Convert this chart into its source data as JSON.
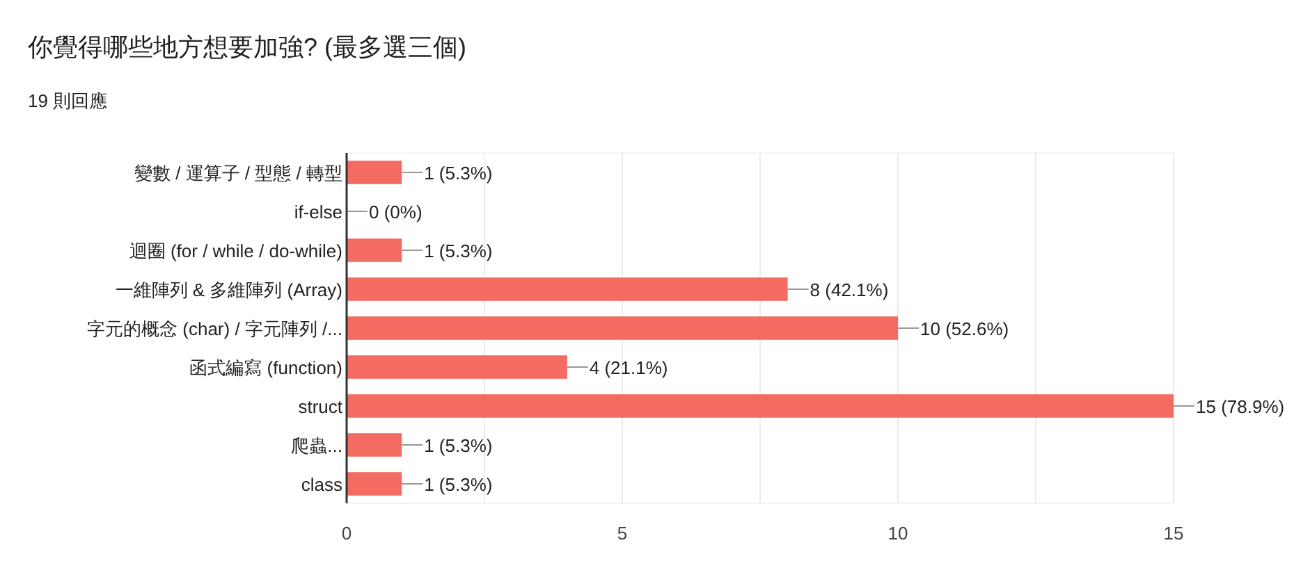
{
  "chart_data": {
    "type": "bar",
    "orientation": "horizontal",
    "title": "你覺得哪些地方想要加強? (最多選三個)",
    "subtitle": "19 則回應",
    "categories": [
      "變數 / 運算子 / 型態 / 轉型",
      "if-else",
      "迴圈 (for / while / do-while)",
      "一維陣列 & 多維陣列 (Array)",
      "字元的概念 (char) / 字元陣列 /...",
      "函式編寫 (function)",
      "struct",
      "爬蟲...",
      "class"
    ],
    "values": [
      1,
      0,
      1,
      8,
      10,
      4,
      15,
      1,
      1
    ],
    "value_labels": [
      "1 (5.3%)",
      "0 (0%)",
      "1 (5.3%)",
      "8 (42.1%)",
      "10 (52.6%)",
      "4 (21.1%)",
      "15 (78.9%)",
      "1 (5.3%)",
      "1 (5.3%)"
    ],
    "color": "#f46b61",
    "xlim": [
      0,
      15
    ],
    "xticks": [
      0,
      {
        "value": 2.5,
        "label": null
      },
      5,
      {
        "value": 7.5,
        "label": null
      },
      10,
      {
        "value": 12.5,
        "label": null
      },
      15
    ],
    "grid": "x"
  }
}
